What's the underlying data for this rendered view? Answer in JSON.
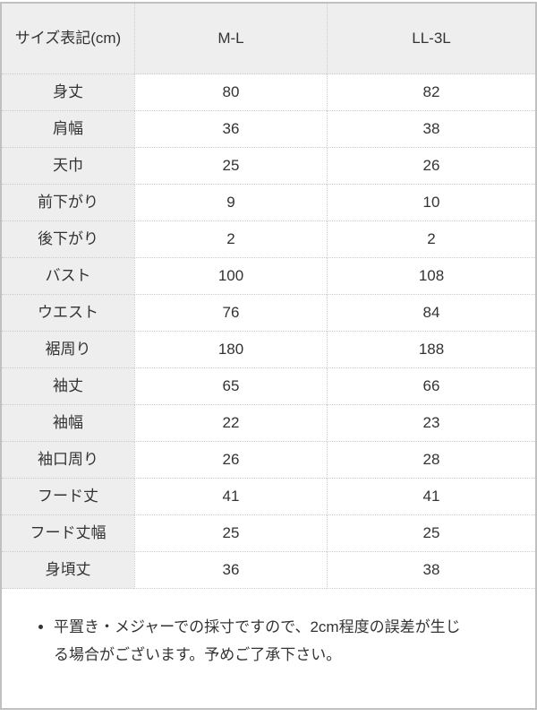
{
  "size_table": {
    "unit_header": "サイズ表記(cm)",
    "columns": [
      "M-L",
      "LL-3L"
    ],
    "rows": [
      {
        "label": "身丈",
        "ml": "80",
        "ll3l": "82"
      },
      {
        "label": "肩幅",
        "ml": "36",
        "ll3l": "38"
      },
      {
        "label": "天巾",
        "ml": "25",
        "ll3l": "26"
      },
      {
        "label": "前下がり",
        "ml": "9",
        "ll3l": "10"
      },
      {
        "label": "後下がり",
        "ml": "2",
        "ll3l": "2"
      },
      {
        "label": "バスト",
        "ml": "100",
        "ll3l": "108"
      },
      {
        "label": "ウエスト",
        "ml": "76",
        "ll3l": "84"
      },
      {
        "label": "裾周り",
        "ml": "180",
        "ll3l": "188"
      },
      {
        "label": "袖丈",
        "ml": "65",
        "ll3l": "66"
      },
      {
        "label": "袖幅",
        "ml": "22",
        "ll3l": "23"
      },
      {
        "label": "袖口周り",
        "ml": "26",
        "ll3l": "28"
      },
      {
        "label": "フード丈",
        "ml": "41",
        "ll3l": "41"
      },
      {
        "label": "フード丈幅",
        "ml": "25",
        "ll3l": "25"
      },
      {
        "label": "身頃丈",
        "ml": "36",
        "ll3l": "38"
      }
    ]
  },
  "note": {
    "text": "平置き・メジャーでの採寸ですので、2cm程度の誤差が生じる場合がございます。予めご了承下さい。"
  },
  "colors": {
    "header_bg": "#eeeeee",
    "outer_border": "#c0c0c0",
    "inner_border": "#cccccc"
  }
}
